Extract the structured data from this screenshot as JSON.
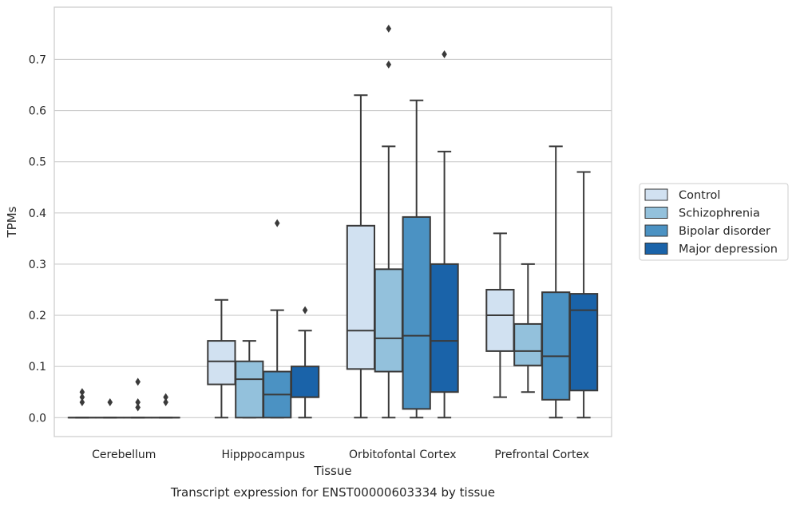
{
  "chart_data": {
    "type": "box",
    "xlabel": "Tissue",
    "ylabel": "TPMs",
    "caption": "Transcript expression for ENST00000603334 by tissue",
    "ylim": [
      -0.037,
      0.802
    ],
    "yticks": [
      "0.0",
      "0.1",
      "0.2",
      "0.3",
      "0.4",
      "0.5",
      "0.6",
      "0.7"
    ],
    "grid": "horizontal",
    "legend_position": "right",
    "categories": [
      "Cerebellum",
      "Hipppocampus",
      "Orbitofontal Cortex",
      "Prefrontal Cortex"
    ],
    "series": [
      {
        "name": "Control",
        "color": "#d1e1f1",
        "boxes": [
          {
            "whislo": 0,
            "q1": 0,
            "med": 0,
            "q3": 0,
            "whishi": 0,
            "fliers": [
              0.03,
              0.04,
              0.05
            ]
          },
          {
            "whislo": 0,
            "q1": 0.065,
            "med": 0.11,
            "q3": 0.15,
            "whishi": 0.23,
            "fliers": []
          },
          {
            "whislo": 0,
            "q1": 0.095,
            "med": 0.17,
            "q3": 0.375,
            "whishi": 0.63,
            "fliers": []
          },
          {
            "whislo": 0.04,
            "q1": 0.13,
            "med": 0.2,
            "q3": 0.25,
            "whishi": 0.36,
            "fliers": []
          }
        ]
      },
      {
        "name": "Schizophrenia",
        "color": "#93c1dc",
        "boxes": [
          {
            "whislo": 0,
            "q1": 0,
            "med": 0,
            "q3": 0,
            "whishi": 0,
            "fliers": [
              0.03
            ]
          },
          {
            "whislo": 0,
            "q1": 0,
            "med": 0.075,
            "q3": 0.11,
            "whishi": 0.15,
            "fliers": []
          },
          {
            "whislo": 0,
            "q1": 0.09,
            "med": 0.155,
            "q3": 0.29,
            "whishi": 0.53,
            "fliers": [
              0.69,
              0.76
            ]
          },
          {
            "whislo": 0.05,
            "q1": 0.102,
            "med": 0.13,
            "q3": 0.183,
            "whishi": 0.3,
            "fliers": []
          }
        ]
      },
      {
        "name": "Bipolar disorder",
        "color": "#4b92c3",
        "boxes": [
          {
            "whislo": 0,
            "q1": 0,
            "med": 0,
            "q3": 0,
            "whishi": 0,
            "fliers": [
              0.02,
              0.03,
              0.07
            ]
          },
          {
            "whislo": 0,
            "q1": 0,
            "med": 0.045,
            "q3": 0.09,
            "whishi": 0.21,
            "fliers": [
              0.38
            ]
          },
          {
            "whislo": 0,
            "q1": 0.017,
            "med": 0.16,
            "q3": 0.392,
            "whishi": 0.62,
            "fliers": []
          },
          {
            "whislo": 0,
            "q1": 0.035,
            "med": 0.12,
            "q3": 0.245,
            "whishi": 0.53,
            "fliers": []
          }
        ]
      },
      {
        "name": "Major depression",
        "color": "#1a63a9",
        "boxes": [
          {
            "whislo": 0,
            "q1": 0,
            "med": 0,
            "q3": 0,
            "whishi": 0,
            "fliers": [
              0.03,
              0.04
            ]
          },
          {
            "whislo": 0,
            "q1": 0.04,
            "med": 0.04,
            "q3": 0.1,
            "whishi": 0.17,
            "fliers": [
              0.21
            ]
          },
          {
            "whislo": 0,
            "q1": 0.05,
            "med": 0.15,
            "q3": 0.3,
            "whishi": 0.52,
            "fliers": [
              0.71
            ]
          },
          {
            "whislo": 0,
            "q1": 0.053,
            "med": 0.21,
            "q3": 0.242,
            "whishi": 0.48,
            "fliers": []
          }
        ]
      }
    ]
  }
}
